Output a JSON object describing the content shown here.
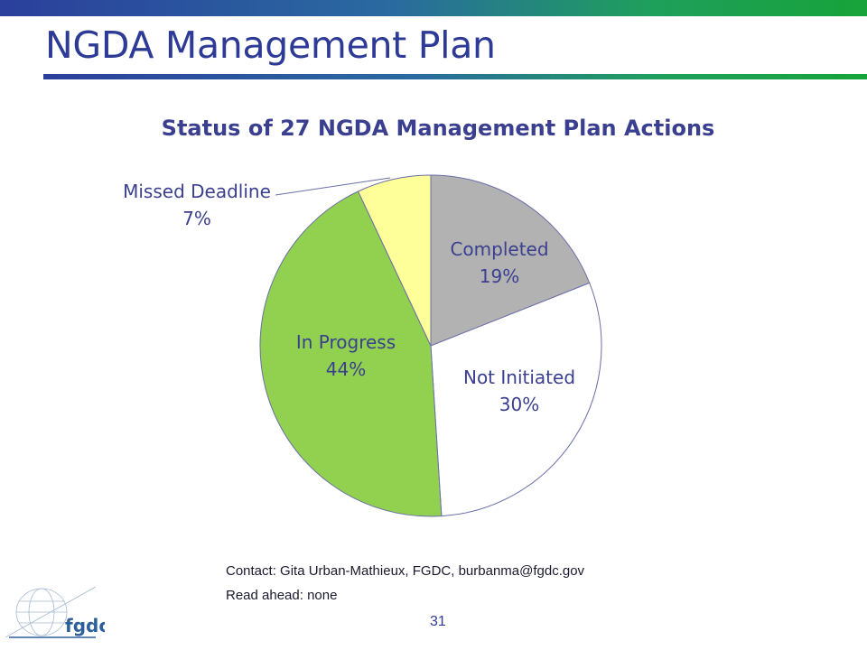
{
  "slide": {
    "title": "NGDA Management Plan",
    "contact": "Contact: Gita Urban-Mathieux, FGDC, burbanma@fgdc.gov",
    "read_ahead": "Read ahead: none",
    "page_number": "31",
    "logo_text": "fgdc"
  },
  "chart_data": {
    "type": "pie",
    "title": "Status of 27 NGDA Management Plan Actions",
    "slices": [
      {
        "label": "Completed",
        "value": 19,
        "value_label": "19%",
        "color": "#b2b2b2"
      },
      {
        "label": "Not Initiated",
        "value": 30,
        "value_label": "30%",
        "color": "#ffffff"
      },
      {
        "label": "In Progress",
        "value": 44,
        "value_label": "44%",
        "color": "#92d050"
      },
      {
        "label": "Missed Deadline",
        "value": 7,
        "value_label": "7%",
        "color": "#ffff99"
      }
    ],
    "label_color": "#3a3f8f",
    "edge_color": "#6a6fa8",
    "legend": "none"
  }
}
